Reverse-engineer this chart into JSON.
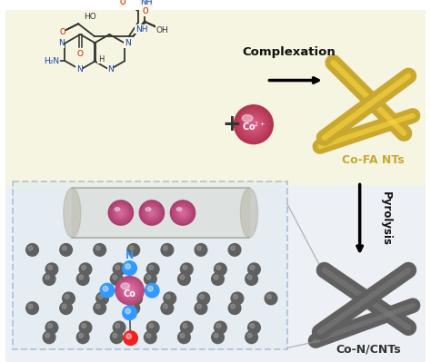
{
  "bg_top_color": "#f5f5e0",
  "bg_bottom_color": "#e8eef5",
  "complexation_text": "Complexation",
  "pyrolysis_text": "Pyrolysis",
  "cofa_label": "Co-FA NTs",
  "cnt_label": "Co-N/CNTs",
  "co_ion_label": "Co$^{2+}$",
  "N_label": "N",
  "Co_label": "Co",
  "tube_color_gold": "#c8a830",
  "tube_color_gold_dark": "#9a7e1e",
  "tube_color_dark": "#606060",
  "tube_color_darker": "#404040",
  "atom_C_color": "#606060",
  "atom_N_color": "#3399ff",
  "atom_Co_color": "#d060a0",
  "atom_O_color": "#ee2222",
  "co_ion_color": "#c03070",
  "dashed_box_color": "#7799bb"
}
